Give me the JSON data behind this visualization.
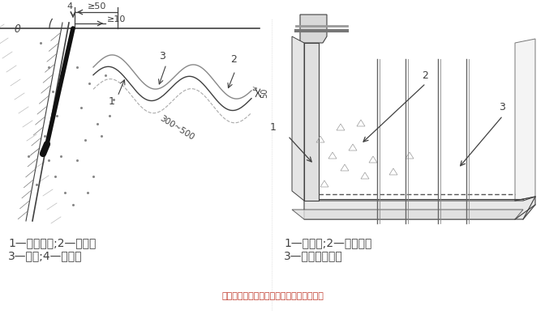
{
  "bg_color": "#ffffff",
  "line_color": "#404040",
  "light_line_color": "#888888",
  "dashed_line_color": "#aaaaaa",
  "title_color": "#c0392b",
  "caption": "跨縫鉆孔注漿（左）、帷幕灌漿示意（右）",
  "left_legend": "1—封縫材料;2—鉆孔；\n3—裂縫;4—注漿嘴",
  "right_legend": "1—防水層;2—注漿嘴；\n3—丙烯酸鹽漿液",
  "dim_50_label": "≥50",
  "dim_10_label": "≥10",
  "dim_300_500_label": "300~500",
  "dim_50v_label": "50",
  "theta_label": "θ",
  "label_4": "4",
  "label_3_left": "3",
  "label_2_left": "2",
  "label_1_left": "1",
  "label_1_right": "1",
  "label_2_right": "2",
  "label_3_right": "3"
}
